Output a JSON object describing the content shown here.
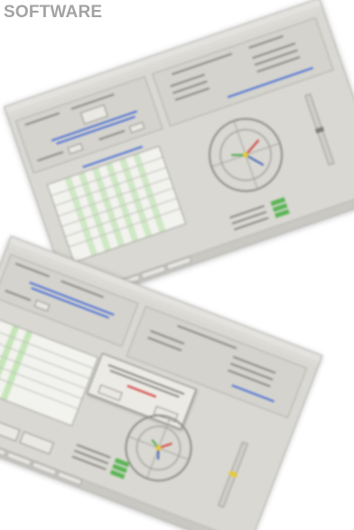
{
  "heading": {
    "text": "SOFTWARE"
  },
  "colors": {
    "heading": "#a3a3a3",
    "window_bg": "#d9d8d2",
    "accent_blue": "#4a6fd6",
    "accent_green": "#49a74a",
    "accent_red": "#d23b3b",
    "accent_yellow": "#e5c93a"
  },
  "screenshots": [
    {
      "name": "top-screenshot",
      "has_dialog": false
    },
    {
      "name": "bottom-screenshot",
      "has_dialog": true
    }
  ]
}
